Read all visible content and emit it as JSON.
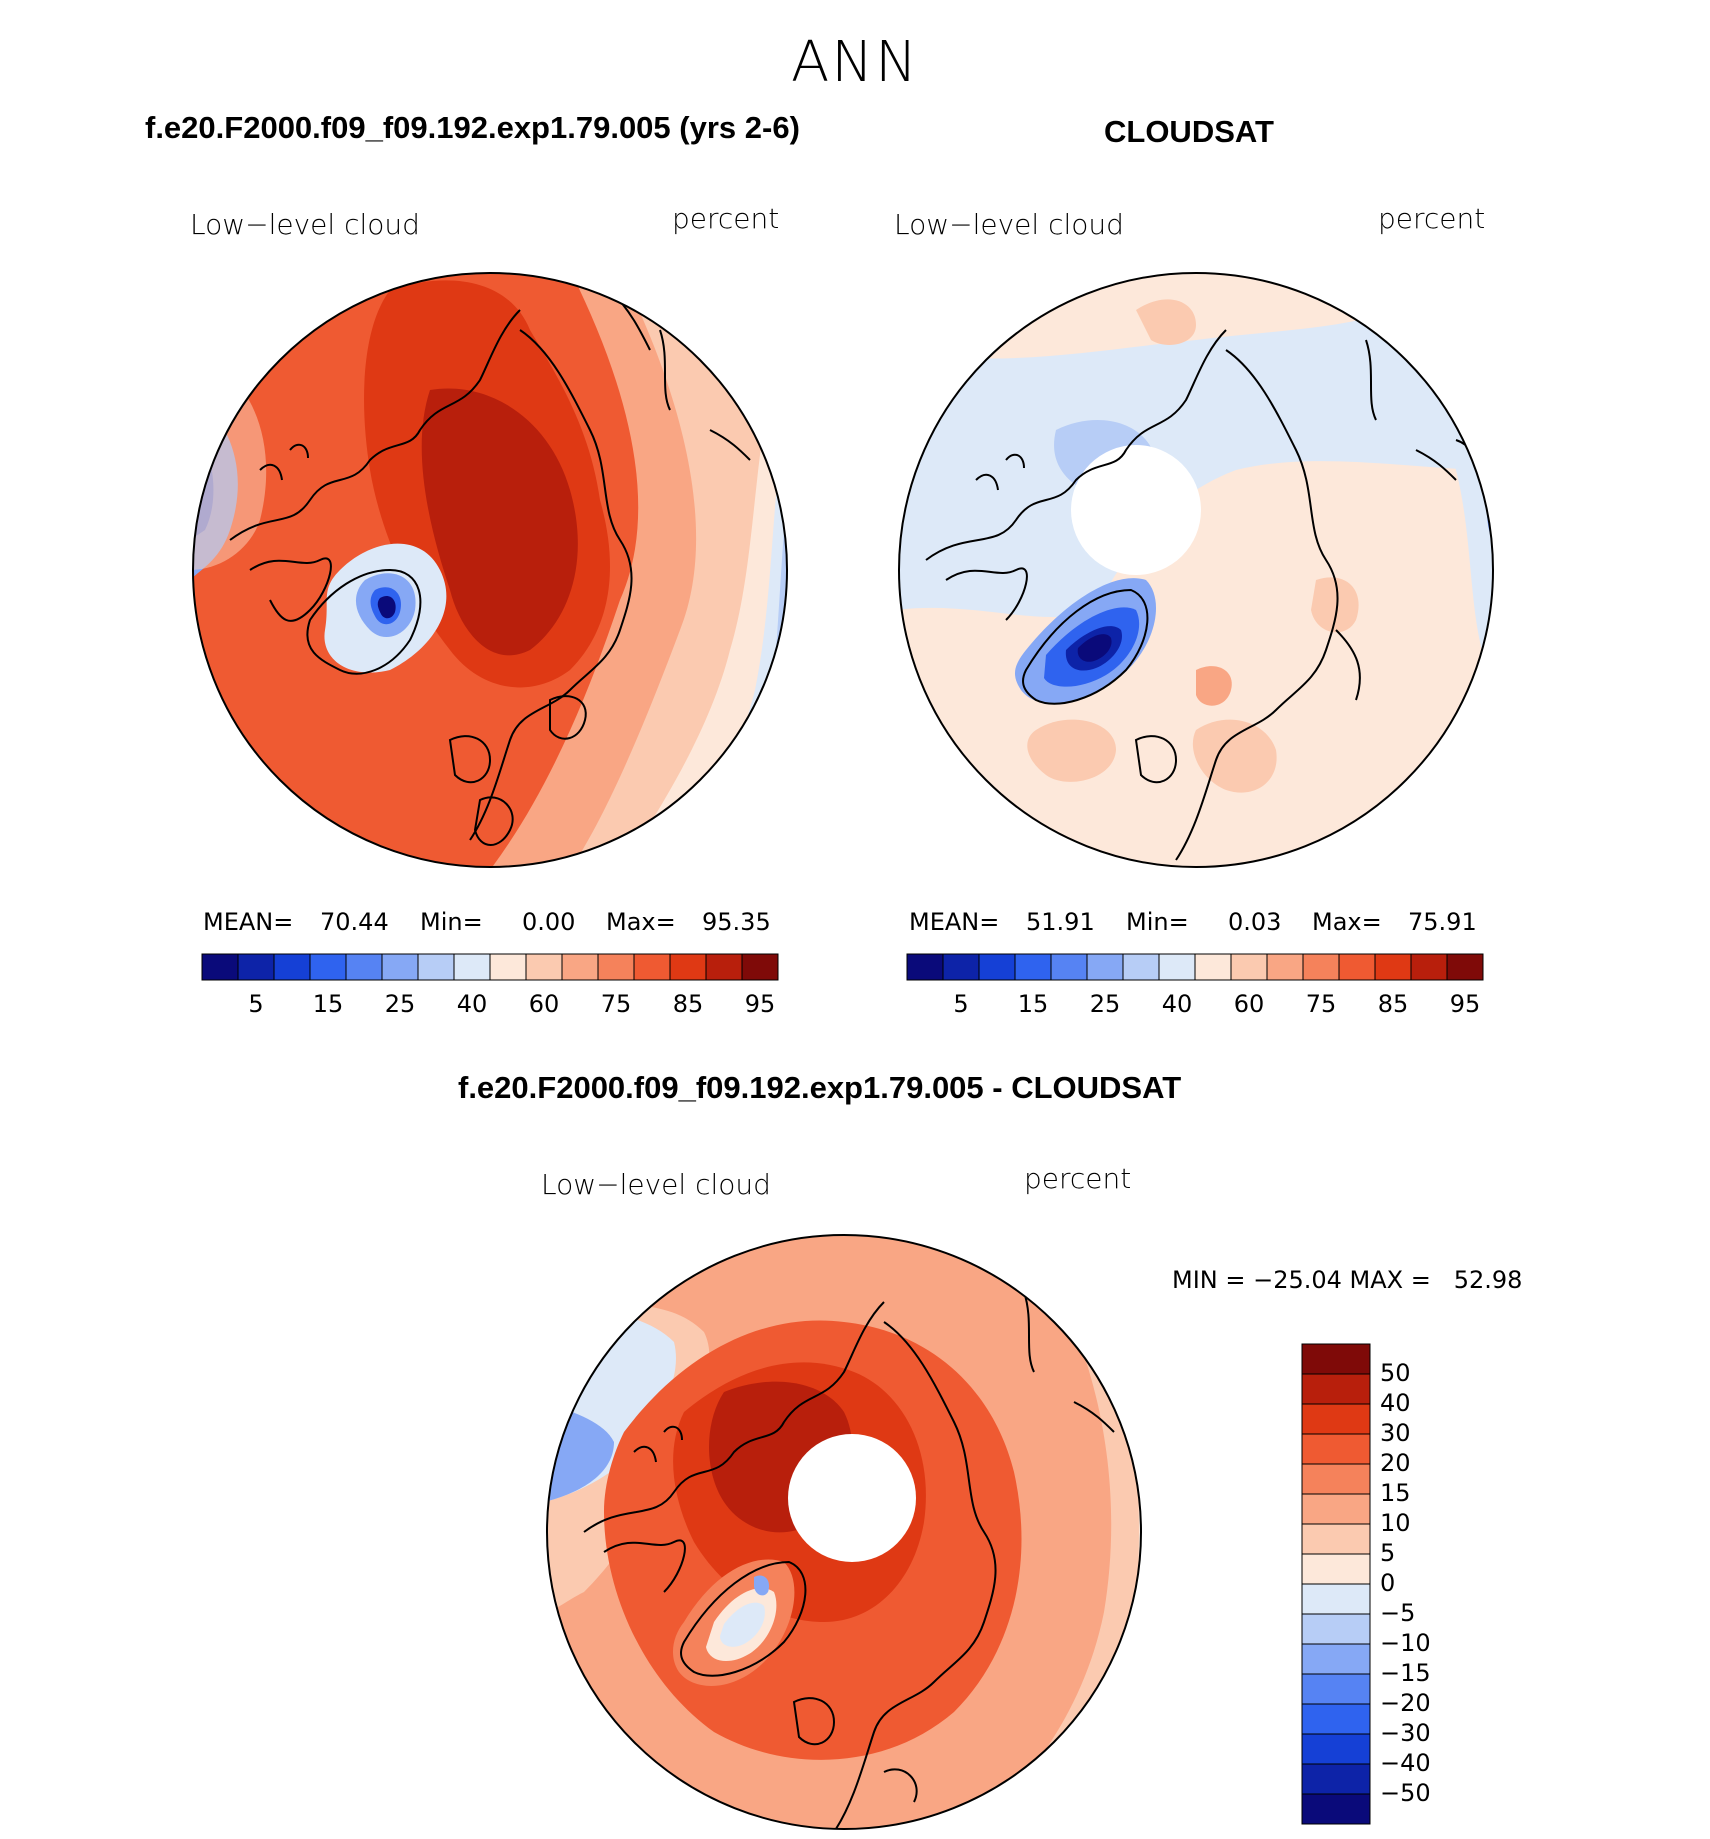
{
  "title": "ANN",
  "panels": [
    {
      "id": "model",
      "title": "f.e20.F2000.f09_f09.192.exp1.79.005 (yrs 2-6)",
      "field_label": "Low−level cloud",
      "units_label": "percent",
      "stats": {
        "mean_label": "MEAN=",
        "mean": "70.44",
        "min_label": "Min=",
        "min": "0.00",
        "max_label": "Max=",
        "max": "95.35"
      }
    },
    {
      "id": "obs",
      "title": "CLOUDSAT",
      "field_label": "Low−level cloud",
      "units_label": "percent",
      "stats": {
        "mean_label": "MEAN=",
        "mean": "51.91",
        "min_label": "Min=",
        "min": "0.03",
        "max_label": "Max=",
        "max": "75.91"
      }
    },
    {
      "id": "diff",
      "title": "f.e20.F2000.f09_f09.192.exp1.79.005 - CLOUDSAT",
      "field_label": "Low−level cloud",
      "units_label": "percent",
      "stats_text": "MIN = −25.04 MAX =   52.98"
    }
  ],
  "abs_colorbar": {
    "colors": [
      "#0a0a7a",
      "#0d23a8",
      "#1540d6",
      "#2f63ef",
      "#5683f3",
      "#86a8f5",
      "#b7cdf6",
      "#dde9f8",
      "#fde8da",
      "#fbcab0",
      "#f9a684",
      "#f5825b",
      "#ef5a32",
      "#df3914",
      "#b81f0c",
      "#7f0a08"
    ],
    "labels": [
      "5",
      "15",
      "25",
      "40",
      "60",
      "75",
      "85",
      "95"
    ]
  },
  "diff_colorbar": {
    "colors_top_to_bottom": [
      "#7f0a08",
      "#b81f0c",
      "#df3914",
      "#ef5a32",
      "#f5825b",
      "#f9a684",
      "#fbcab0",
      "#fde8da",
      "#dde9f8",
      "#b7cdf6",
      "#86a8f5",
      "#5683f3",
      "#2f63ef",
      "#1540d6",
      "#0d23a8",
      "#0a0a7a"
    ],
    "labels": [
      "50",
      "40",
      "30",
      "20",
      "15",
      "10",
      "5",
      "0",
      "−5",
      "−10",
      "−15",
      "−20",
      "−30",
      "−40",
      "−50"
    ]
  }
}
